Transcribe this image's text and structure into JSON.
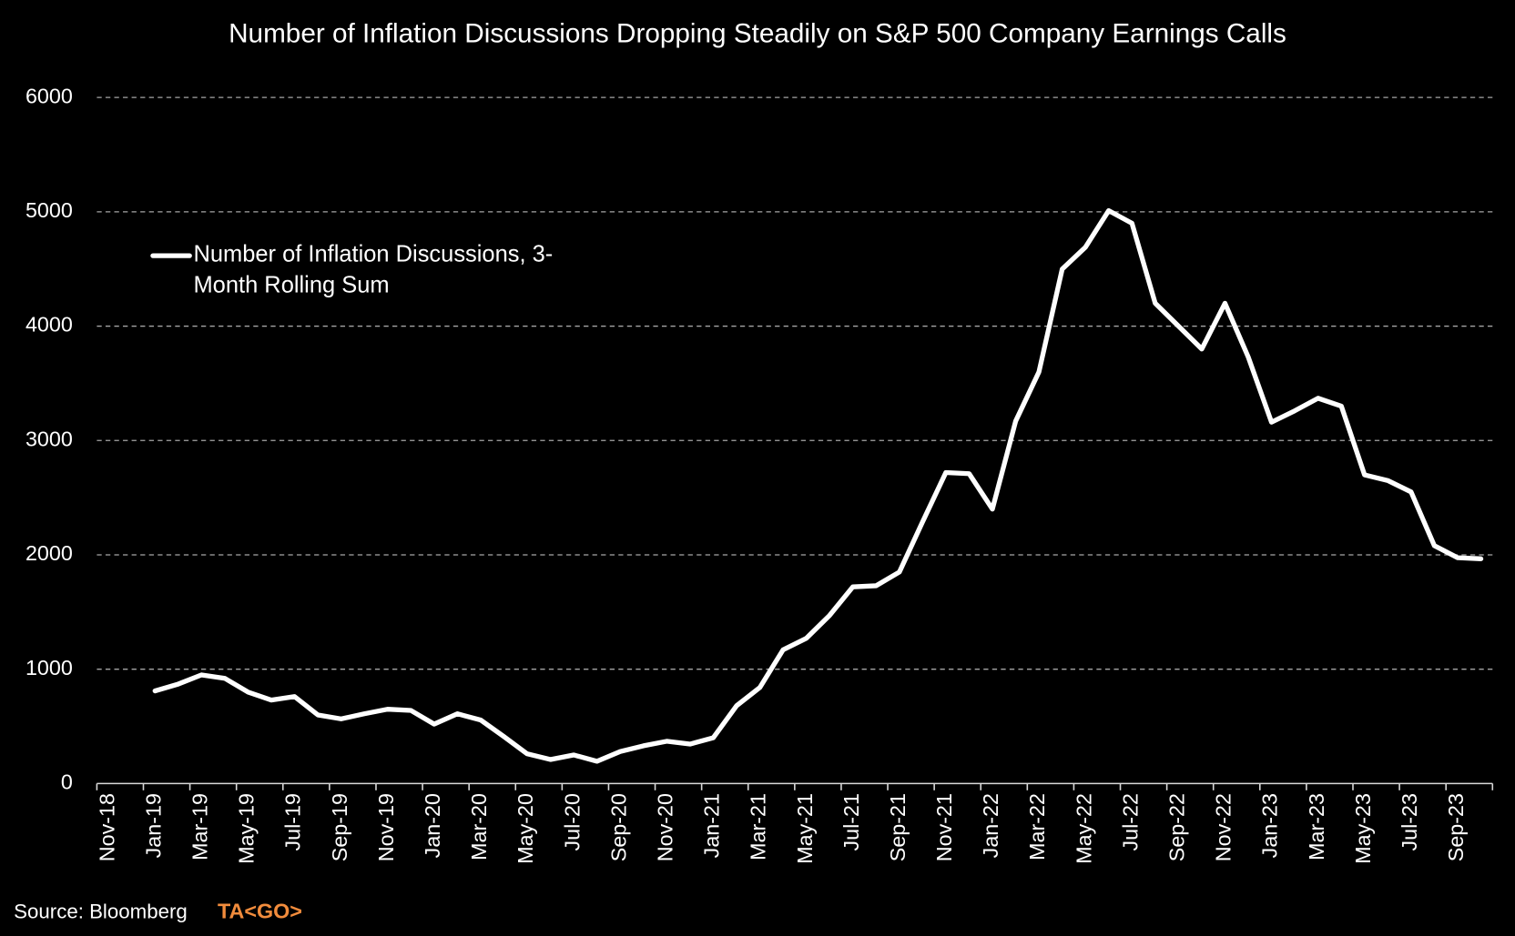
{
  "chart_data": {
    "type": "line",
    "title": "Number of Inflation Discussions Dropping Steadily on S&P 500 Company Earnings Calls",
    "categories": [
      "Nov-18",
      null,
      "Jan-19",
      null,
      "Mar-19",
      null,
      "May-19",
      null,
      "Jul-19",
      null,
      "Sep-19",
      null,
      "Nov-19",
      null,
      "Jan-20",
      null,
      "Mar-20",
      null,
      "May-20",
      null,
      "Jul-20",
      null,
      "Sep-20",
      null,
      "Nov-20",
      null,
      "Jan-21",
      null,
      "Mar-21",
      null,
      "May-21",
      null,
      "Jul-21",
      null,
      "Sep-21",
      null,
      "Nov-21",
      null,
      "Jan-22",
      null,
      "Mar-22",
      null,
      "May-22",
      null,
      "Jul-22",
      null,
      "Sep-22",
      null,
      "Nov-22",
      null,
      "Jan-23",
      null,
      "Mar-23",
      null,
      "May-23",
      null,
      "Jul-23",
      null,
      "Sep-23",
      null
    ],
    "series": [
      {
        "name": "Number of Inflation Discussions, 3-Month Rolling Sum",
        "color": "#ffffff",
        "values": [
          null,
          null,
          810,
          870,
          950,
          920,
          800,
          730,
          760,
          600,
          565,
          610,
          650,
          640,
          520,
          610,
          555,
          410,
          260,
          210,
          250,
          195,
          280,
          330,
          370,
          345,
          400,
          680,
          840,
          1170,
          1270,
          1470,
          1720,
          1730,
          1850,
          2290,
          2720,
          2710,
          2400,
          3170,
          3600,
          4500,
          4690,
          5010,
          4900,
          4200,
          4000,
          3800,
          4200,
          3730,
          3160,
          3260,
          3370,
          3300,
          2700,
          2650,
          2550,
          2080,
          1975,
          1965
        ]
      }
    ],
    "ylim": [
      0,
      6000
    ],
    "yticks": [
      0,
      1000,
      2000,
      3000,
      4000,
      5000,
      6000
    ],
    "grid": true,
    "legend": "upper left",
    "source": "Source: Bloomberg",
    "logo": "TA<GO>"
  }
}
